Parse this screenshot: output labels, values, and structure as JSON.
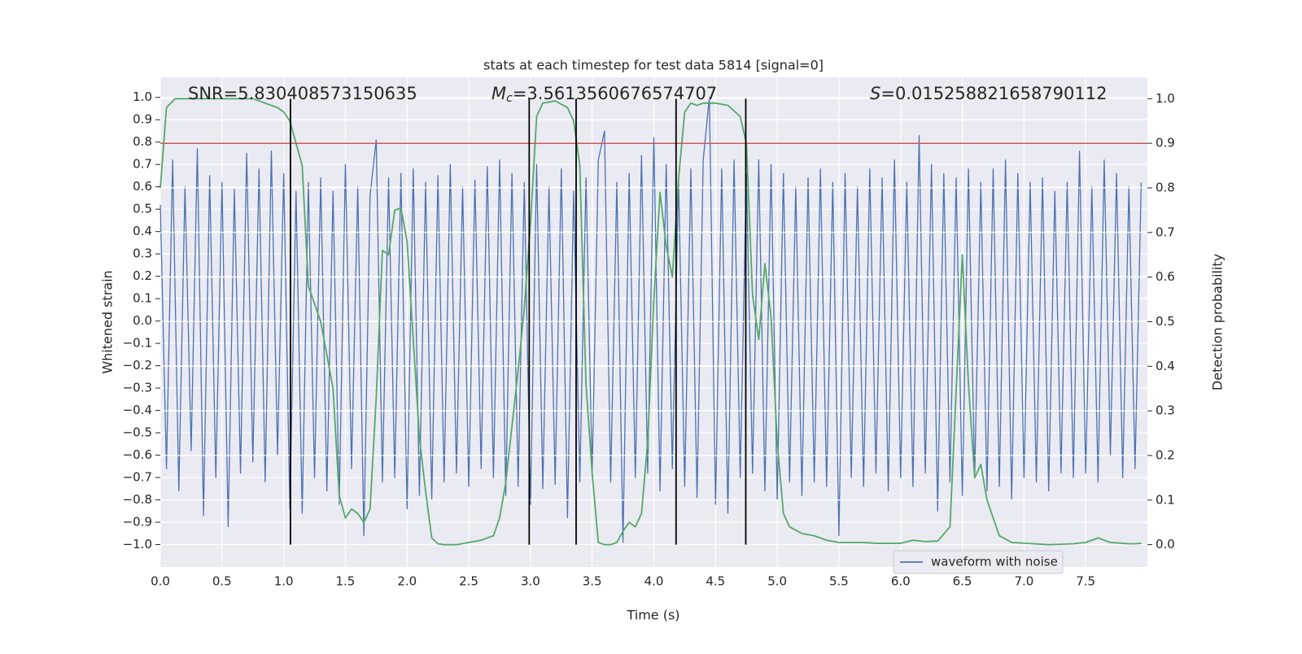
{
  "chart_data": {
    "type": "line",
    "title": "stats at each timestep for test data 5814 [signal=0]",
    "x_label": "Time (s)",
    "y_label": "Whitened strain",
    "y2_label": "Detection probability",
    "annotations": [
      {
        "text": "SNR=5.830408573150635"
      },
      {
        "symbol": "M",
        "subscript": "c",
        "text": "=3.5613560676574707"
      },
      {
        "symbol": "S",
        "text": "=0.015258821658790112"
      }
    ],
    "xlim": [
      0,
      8
    ],
    "ylim": [
      -1.1,
      1.09
    ],
    "y2lim": [
      -0.05,
      1.048
    ],
    "xticks": [
      {
        "value": 0,
        "label": "0.0"
      },
      0.5,
      {
        "value": 1,
        "label": "1.0"
      },
      1.5,
      {
        "value": 2,
        "label": "2.0"
      },
      2.5,
      {
        "value": 3,
        "label": "3.0"
      },
      3.5,
      {
        "value": 4,
        "label": "4.0"
      },
      4.5,
      {
        "value": 5,
        "label": "5.0"
      },
      5.5,
      {
        "value": 6,
        "label": "6.0"
      },
      6.5,
      {
        "value": 7,
        "label": "7.0"
      },
      7.5
    ],
    "yticks": [
      {
        "value": 1,
        "label": "1.0"
      },
      0.9,
      0.8,
      0.7,
      0.6,
      0.5,
      0.4,
      0.3,
      0.2,
      0.1,
      {
        "value": 0,
        "label": "0.0"
      },
      {
        "value": -0.1,
        "label": "−0.1"
      },
      {
        "value": -0.2,
        "label": "−0.2"
      },
      {
        "value": -0.3,
        "label": "−0.3"
      },
      {
        "value": -0.4,
        "label": "−0.4"
      },
      {
        "value": -0.5,
        "label": "−0.5"
      },
      {
        "value": -0.6,
        "label": "−0.6"
      },
      {
        "value": -0.7,
        "label": "−0.7"
      },
      {
        "value": -0.8,
        "label": "−0.8"
      },
      {
        "value": -0.9,
        "label": "−0.9"
      },
      {
        "value": -1,
        "label": "−1.0"
      }
    ],
    "y2ticks": [
      {
        "value": 1,
        "label": "1.0"
      },
      0.9,
      0.8,
      0.7,
      0.6,
      0.5,
      0.4,
      0.3,
      0.2,
      0.1,
      {
        "value": 0,
        "label": "0.0"
      }
    ],
    "grid": true,
    "legend": "lower right",
    "series": [
      {
        "name": "waveform with noise",
        "color": "#4c72b0",
        "x": [
          0,
          0.05,
          0.1,
          0.15,
          0.2,
          0.25,
          0.3,
          0.35,
          0.4,
          0.45,
          0.5,
          0.55,
          0.6,
          0.65,
          0.7,
          0.75,
          0.8,
          0.85,
          0.9,
          0.95,
          1,
          1.05,
          1.1,
          1.15,
          1.2,
          1.25,
          1.3,
          1.35,
          1.4,
          1.45,
          1.5,
          1.55,
          1.6,
          1.65,
          1.7,
          1.75,
          1.8,
          1.85,
          1.9,
          1.95,
          2,
          2.05,
          2.1,
          2.15,
          2.2,
          2.25,
          2.3,
          2.35,
          2.4,
          2.45,
          2.5,
          2.55,
          2.6,
          2.65,
          2.7,
          2.75,
          2.8,
          2.85,
          2.9,
          2.95,
          3,
          3.05,
          3.1,
          3.15,
          3.2,
          3.25,
          3.3,
          3.35,
          3.4,
          3.45,
          3.5,
          3.55,
          3.6,
          3.65,
          3.7,
          3.75,
          3.8,
          3.85,
          3.9,
          3.95,
          4,
          4.05,
          4.1,
          4.15,
          4.2,
          4.25,
          4.3,
          4.35,
          4.4,
          4.45,
          4.5,
          4.55,
          4.6,
          4.65,
          4.7,
          4.75,
          4.8,
          4.85,
          4.9,
          4.95,
          5,
          5.05,
          5.1,
          5.15,
          5.2,
          5.25,
          5.3,
          5.35,
          5.4,
          5.45,
          5.5,
          5.55,
          5.6,
          5.65,
          5.7,
          5.75,
          5.8,
          5.85,
          5.9,
          5.95,
          6,
          6.05,
          6.1,
          6.15,
          6.2,
          6.25,
          6.3,
          6.35,
          6.4,
          6.45,
          6.5,
          6.55,
          6.6,
          6.65,
          6.7,
          6.75,
          6.8,
          6.85,
          6.9,
          6.95,
          7,
          7.05,
          7.1,
          7.15,
          7.2,
          7.25,
          7.3,
          7.35,
          7.4,
          7.45,
          7.5,
          7.55,
          7.6,
          7.65,
          7.7,
          7.75,
          7.8,
          7.85,
          7.9,
          7.95
        ],
        "values": [
          0.52,
          -0.66,
          0.72,
          -0.76,
          0.6,
          -0.58,
          0.77,
          -0.87,
          0.65,
          -0.7,
          0.62,
          -0.92,
          0.59,
          -0.68,
          0.75,
          -0.63,
          0.68,
          -0.72,
          0.76,
          -0.6,
          0.66,
          -0.84,
          0.58,
          -0.86,
          0.62,
          -0.7,
          0.64,
          -0.76,
          0.58,
          -0.82,
          0.7,
          -0.66,
          0.6,
          -0.96,
          0.56,
          0.81,
          -0.72,
          0.64,
          -0.7,
          0.66,
          -0.84,
          0.68,
          -0.78,
          0.62,
          -0.8,
          0.65,
          -0.72,
          0.7,
          -0.68,
          0.6,
          -0.74,
          0.63,
          -0.66,
          0.69,
          -0.7,
          0.72,
          -0.78,
          0.66,
          -0.74,
          0.62,
          -0.82,
          0.7,
          -0.75,
          0.6,
          -0.73,
          0.68,
          -0.88,
          0.58,
          -0.72,
          0.64,
          -0.68,
          0.72,
          0.85,
          -0.72,
          0.62,
          -0.99,
          0.66,
          -0.7,
          0.74,
          -0.68,
          0.82,
          -0.76,
          0.7,
          -0.66,
          0.64,
          -0.74,
          0.68,
          -0.79,
          0.72,
          1.0,
          -0.82,
          0.68,
          -0.86,
          0.72,
          -0.7,
          0.66,
          -0.68,
          0.72,
          -0.76,
          0.7,
          -0.8,
          0.66,
          -0.72,
          0.6,
          -0.78,
          0.64,
          -0.72,
          0.68,
          -0.74,
          0.62,
          -0.96,
          0.66,
          -0.7,
          0.6,
          -0.74,
          0.68,
          -0.68,
          0.64,
          -0.76,
          0.72,
          -0.7,
          0.62,
          -0.74,
          0.83,
          -0.68,
          0.7,
          -0.85,
          0.66,
          -0.72,
          0.64,
          -0.78,
          0.68,
          -0.7,
          0.62,
          -0.76,
          0.68,
          -0.74,
          0.72,
          -0.8,
          0.66,
          -0.7,
          0.62,
          -0.72,
          0.64,
          -0.76,
          0.58,
          -0.68,
          0.62,
          -0.7,
          0.76,
          -0.68,
          0.6,
          -0.72,
          0.72,
          -0.6,
          0.66,
          -0.7,
          0.6,
          -0.66,
          0.62
        ]
      },
      {
        "color": "#55a868",
        "axis": "y2",
        "x": [
          0,
          0.05,
          0.12,
          0.3,
          0.5,
          0.75,
          0.85,
          0.9,
          0.95,
          1,
          1.05,
          1.1,
          1.15,
          1.2,
          1.3,
          1.4,
          1.45,
          1.5,
          1.55,
          1.6,
          1.65,
          1.7,
          1.75,
          1.8,
          1.85,
          1.9,
          1.95,
          2,
          2.1,
          2.15,
          2.2,
          2.25,
          2.3,
          2.4,
          2.5,
          2.6,
          2.7,
          2.75,
          2.8,
          2.9,
          2.95,
          3,
          3.05,
          3.1,
          3.2,
          3.3,
          3.35,
          3.4,
          3.45,
          3.5,
          3.55,
          3.6,
          3.65,
          3.7,
          3.75,
          3.8,
          3.85,
          3.9,
          3.95,
          4,
          4.05,
          4.1,
          4.15,
          4.2,
          4.25,
          4.3,
          4.35,
          4.4,
          4.5,
          4.6,
          4.7,
          4.75,
          4.8,
          4.85,
          4.9,
          4.95,
          5,
          5.05,
          5.1,
          5.2,
          5.3,
          5.4,
          5.5,
          5.7,
          5.8,
          6,
          6.1,
          6.2,
          6.3,
          6.4,
          6.5,
          6.55,
          6.6,
          6.65,
          6.7,
          6.8,
          6.9,
          7.2,
          7.4,
          7.5,
          7.6,
          7.7,
          7.8,
          7.85,
          7.9,
          7.95
        ],
        "values": [
          0.8,
          0.98,
          1.0,
          1.0,
          1.0,
          1.0,
          0.99,
          0.985,
          0.98,
          0.97,
          0.95,
          0.9,
          0.85,
          0.58,
          0.5,
          0.35,
          0.11,
          0.06,
          0.08,
          0.07,
          0.05,
          0.08,
          0.33,
          0.66,
          0.65,
          0.75,
          0.755,
          0.68,
          0.24,
          0.12,
          0.015,
          0.002,
          0.0,
          0.0,
          0.005,
          0.01,
          0.02,
          0.06,
          0.14,
          0.39,
          0.53,
          0.72,
          0.96,
          0.99,
          0.995,
          0.98,
          0.95,
          0.85,
          0.36,
          0.16,
          0.005,
          0.0,
          0.0,
          0.005,
          0.03,
          0.05,
          0.04,
          0.07,
          0.23,
          0.55,
          0.79,
          0.67,
          0.6,
          0.82,
          0.97,
          0.99,
          0.985,
          0.99,
          0.99,
          0.985,
          0.96,
          0.9,
          0.56,
          0.46,
          0.63,
          0.51,
          0.23,
          0.07,
          0.04,
          0.025,
          0.02,
          0.01,
          0.005,
          0.005,
          0.003,
          0.003,
          0.01,
          0.007,
          0.008,
          0.04,
          0.65,
          0.36,
          0.15,
          0.18,
          0.1,
          0.02,
          0.005,
          0.0,
          0.002,
          0.005,
          0.015,
          0.005,
          0.003,
          0.002,
          0.002,
          0.003
        ]
      }
    ],
    "threshold": {
      "value": 0.9,
      "axis": "y2",
      "color": "#c44e52"
    },
    "vlines": [
      1.055,
      2.99,
      3.37,
      4.18,
      4.745
    ],
    "vline_color": "#000000"
  }
}
